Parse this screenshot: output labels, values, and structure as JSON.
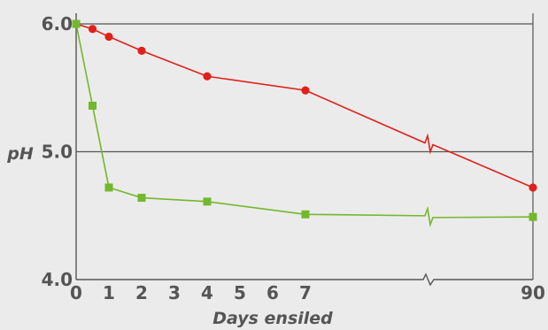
{
  "chart_data": {
    "type": "line",
    "title": "",
    "xlabel": "Days ensiled",
    "ylabel": "pH",
    "ylim": [
      4.0,
      6.0
    ],
    "y_ticks": [
      "4.0",
      "5.0",
      "6.0"
    ],
    "x_ticks": [
      "0",
      "1",
      "2",
      "3",
      "4",
      "5",
      "6",
      "7",
      "90"
    ],
    "x_axis_break": "between 7 and 90",
    "grid": "horizontal at 5.0 and 6.0",
    "legend": "none",
    "series": [
      {
        "color": "#e0201b",
        "marker": "circle",
        "x": [
          0,
          0.5,
          1,
          2,
          4,
          7,
          90
        ],
        "y": [
          6.0,
          5.96,
          5.9,
          5.79,
          5.59,
          5.48,
          4.72
        ]
      },
      {
        "color": "#72b82b",
        "marker": "square",
        "x": [
          0,
          0.5,
          1,
          2,
          4,
          7,
          90
        ],
        "y": [
          6.0,
          5.36,
          4.72,
          4.64,
          4.61,
          4.51,
          4.49
        ]
      }
    ]
  }
}
